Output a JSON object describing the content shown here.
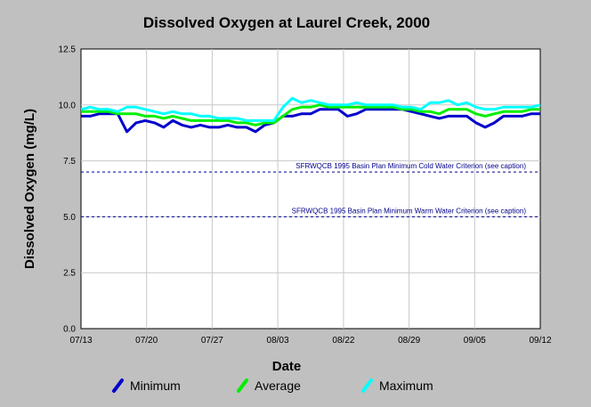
{
  "chart_data": {
    "type": "line",
    "title": "Dissolved Oxygen at Laurel Creek, 2000",
    "xlabel": "Date",
    "ylabel": "Dissolved Oxygen (mg/L)",
    "ylim": [
      0,
      12.5
    ],
    "yticks": [
      "0.0",
      "2.5",
      "5.0",
      "7.5",
      "10.0",
      "12.5"
    ],
    "xlim": [
      0,
      25
    ],
    "x_tick_positions": [
      0,
      3.57,
      7.14,
      10.71,
      14.29,
      17.86,
      21.43,
      25
    ],
    "x_tick_labels": [
      "07/13",
      "07/20",
      "07/27",
      "08/03",
      "08/22",
      "08/29",
      "09/05",
      "09/12"
    ],
    "grid": true,
    "legend_position": "bottom",
    "reference_lines": [
      {
        "value": 7.0,
        "label": "SFRWQCB 1995 Basin Plan Minimum Cold Water Criterion (see caption)",
        "color": "#00008b"
      },
      {
        "value": 5.0,
        "label": "SFRWQCB 1995 Basin Plan Minimum Warm Water Criterion (see caption)",
        "color": "#00008b"
      }
    ],
    "x": [
      0,
      0.5,
      1,
      1.5,
      2,
      2.5,
      3,
      3.5,
      4,
      4.5,
      5,
      5.5,
      6,
      6.5,
      7,
      7.5,
      8,
      8.5,
      9,
      9.5,
      10,
      10.5,
      11,
      11.5,
      12,
      12.5,
      13,
      13.5,
      14,
      14.5,
      15,
      15.5,
      16,
      16.5,
      17,
      17.5,
      18,
      18.5,
      19,
      19.5,
      20,
      20.5,
      21,
      21.5,
      22,
      22.5,
      23,
      23.5,
      24,
      24.5,
      25
    ],
    "series": [
      {
        "name": "Minimum",
        "color": "#0000cc",
        "values": [
          9.5,
          9.5,
          9.6,
          9.6,
          9.6,
          8.8,
          9.2,
          9.3,
          9.2,
          9.0,
          9.3,
          9.1,
          9.0,
          9.1,
          9.0,
          9.0,
          9.1,
          9.0,
          9.0,
          8.8,
          9.1,
          9.2,
          9.5,
          9.5,
          9.6,
          9.6,
          9.8,
          9.8,
          9.8,
          9.5,
          9.6,
          9.8,
          9.8,
          9.8,
          9.8,
          9.8,
          9.7,
          9.6,
          9.5,
          9.4,
          9.5,
          9.5,
          9.5,
          9.2,
          9.0,
          9.2,
          9.5,
          9.5,
          9.5,
          9.6,
          9.6
        ]
      },
      {
        "name": "Average",
        "color": "#00ee00",
        "values": [
          9.7,
          9.7,
          9.7,
          9.7,
          9.6,
          9.6,
          9.6,
          9.5,
          9.5,
          9.4,
          9.5,
          9.4,
          9.3,
          9.3,
          9.3,
          9.3,
          9.3,
          9.2,
          9.2,
          9.1,
          9.2,
          9.2,
          9.5,
          9.8,
          9.9,
          9.9,
          10.0,
          9.9,
          9.9,
          9.9,
          9.9,
          9.9,
          9.9,
          9.9,
          9.9,
          9.8,
          9.8,
          9.7,
          9.7,
          9.6,
          9.8,
          9.8,
          9.8,
          9.6,
          9.5,
          9.6,
          9.7,
          9.7,
          9.7,
          9.8,
          9.8
        ]
      },
      {
        "name": "Maximum",
        "color": "#00ffff",
        "values": [
          9.8,
          9.9,
          9.8,
          9.8,
          9.7,
          9.9,
          9.9,
          9.8,
          9.7,
          9.6,
          9.7,
          9.6,
          9.6,
          9.5,
          9.5,
          9.4,
          9.4,
          9.4,
          9.3,
          9.3,
          9.3,
          9.3,
          9.9,
          10.3,
          10.1,
          10.2,
          10.1,
          10.0,
          10.0,
          10.0,
          10.1,
          10.0,
          10.0,
          10.0,
          10.0,
          9.9,
          9.9,
          9.8,
          10.1,
          10.1,
          10.2,
          10.0,
          10.1,
          9.9,
          9.8,
          9.8,
          9.9,
          9.9,
          9.9,
          9.9,
          10.0
        ]
      }
    ]
  }
}
